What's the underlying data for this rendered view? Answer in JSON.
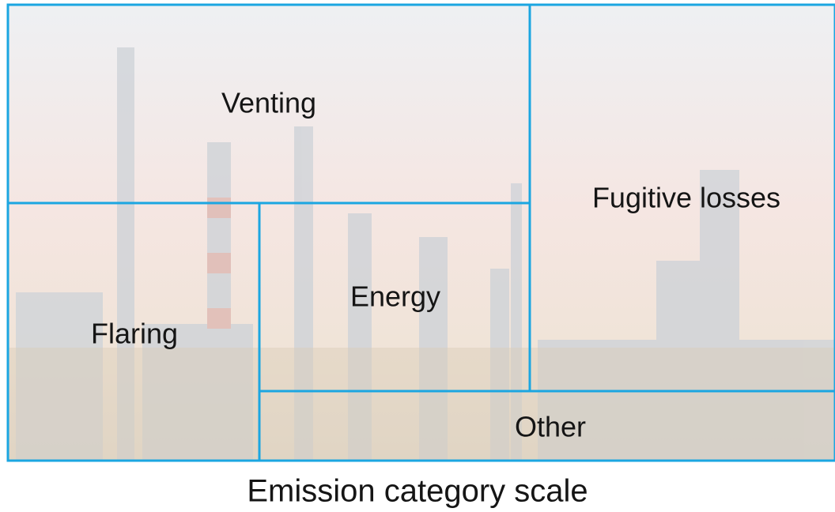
{
  "regions": [
    {
      "label": "Venting"
    },
    {
      "label": "Fugitive losses"
    },
    {
      "label": "Flaring"
    },
    {
      "label": "Energy"
    },
    {
      "label": "Other"
    }
  ],
  "caption": "Emission category scale"
}
